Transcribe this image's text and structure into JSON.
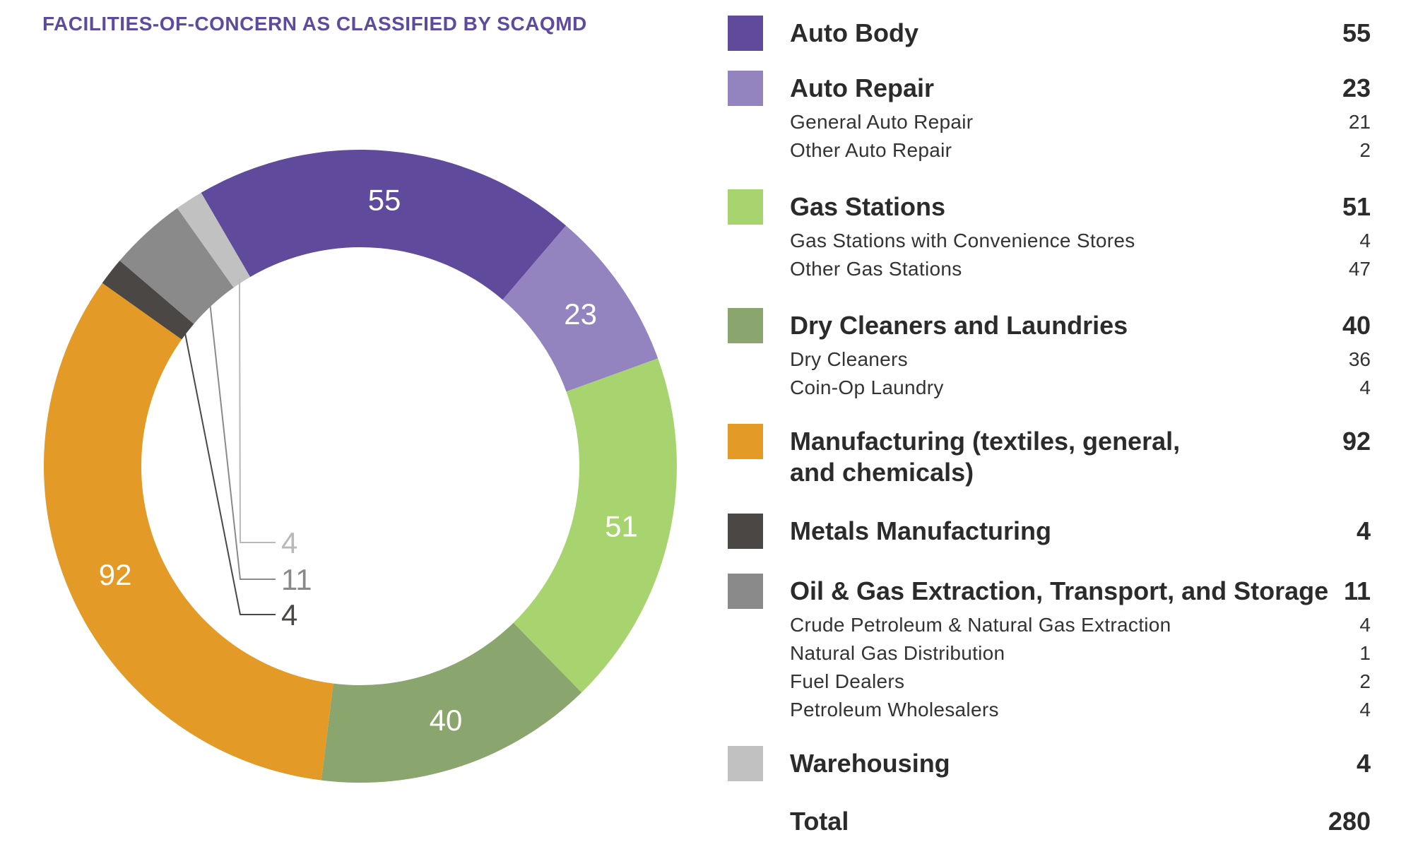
{
  "chart_data": {
    "type": "pie",
    "title": "FACILITIES-OF-CONCERN AS CLASSIFIED BY SCAQMD",
    "donut": true,
    "slices": [
      {
        "label": "Auto Body",
        "value": 55,
        "color": "#5f4a9c",
        "label_color": "#ffffff"
      },
      {
        "label": "Auto Repair",
        "value": 23,
        "color": "#9384c0",
        "label_color": "#ffffff"
      },
      {
        "label": "Gas Stations",
        "value": 51,
        "color": "#a8d46f",
        "label_color": "#ffffff"
      },
      {
        "label": "Dry Cleaners and Laundries",
        "value": 40,
        "color": "#8ba56f",
        "label_color": "#ffffff"
      },
      {
        "label": "Manufacturing (textiles, general, and chemicals)",
        "value": 92,
        "color": "#e39a26",
        "label_color": "#ffffff"
      },
      {
        "label": "Metals Manufacturing",
        "value": 4,
        "color": "#4a4744",
        "label_color": "#4a4744"
      },
      {
        "label": "Oil & Gas Extraction, Transport, and Storage",
        "value": 11,
        "color": "#8a8a8a",
        "label_color": "#8a8a8a"
      },
      {
        "label": "Warehousing",
        "value": 4,
        "color": "#c2c1c2",
        "label_color": "#b9b9b9"
      }
    ],
    "total": 280
  },
  "legend": {
    "categories": [
      {
        "label": "Auto Body",
        "value": "55",
        "color": "#5f4a9c",
        "subitems": []
      },
      {
        "label": "Auto Repair",
        "value": "23",
        "color": "#9384c0",
        "subitems": [
          {
            "label": "General Auto Repair",
            "value": "21"
          },
          {
            "label": "Other Auto Repair",
            "value": "2"
          }
        ]
      },
      {
        "label": "Gas Stations",
        "value": "51",
        "color": "#a8d46f",
        "subitems": [
          {
            "label": "Gas Stations with Convenience Stores",
            "value": "4"
          },
          {
            "label": "Other Gas Stations",
            "value": "47"
          }
        ]
      },
      {
        "label": "Dry Cleaners and Laundries",
        "value": "40",
        "color": "#8ba56f",
        "subitems": [
          {
            "label": "Dry Cleaners",
            "value": "36"
          },
          {
            "label": "Coin-Op Laundry",
            "value": "4"
          }
        ]
      },
      {
        "label_line1": "Manufacturing (textiles, general,",
        "label_line2": "and chemicals)",
        "value": "92",
        "color": "#e39a26",
        "subitems": []
      },
      {
        "label": "Metals Manufacturing",
        "value": "4",
        "color": "#4a4744",
        "subitems": []
      },
      {
        "label": "Oil & Gas Extraction, Transport, and Storage",
        "value": "11",
        "color": "#8a8a8a",
        "subitems": [
          {
            "label": "Crude Petroleum & Natural Gas Extraction",
            "value": "4"
          },
          {
            "label": "Natural Gas Distribution",
            "value": "1"
          },
          {
            "label": "Fuel Dealers",
            "value": "2"
          },
          {
            "label": "Petroleum Wholesalers",
            "value": "4"
          }
        ]
      },
      {
        "label": "Warehousing",
        "value": "4",
        "color": "#c2c1c2",
        "subitems": []
      }
    ],
    "total_label": "Total",
    "total_value": "280"
  }
}
